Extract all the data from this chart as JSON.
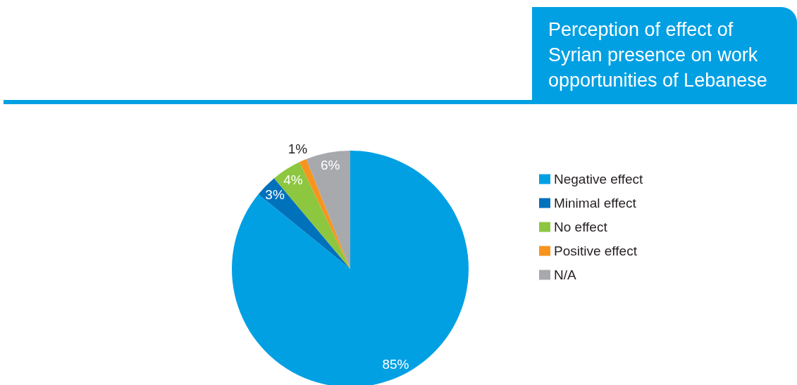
{
  "chart_data": {
    "type": "pie",
    "title": "Perception of effect of Syrian presence on work opportunities of Lebanese",
    "categories": [
      "Negative effect",
      "Minimal effect",
      "No effect",
      "Positive effect",
      "N/A"
    ],
    "values": [
      85,
      3,
      4,
      1,
      6
    ],
    "colors": [
      "#00a0e3",
      "#0071bb",
      "#8dc63f",
      "#f7941d",
      "#a7a9ac"
    ],
    "value_labels": [
      "85%",
      "3%",
      "4%",
      "1%",
      "6%"
    ],
    "legend": "right"
  }
}
